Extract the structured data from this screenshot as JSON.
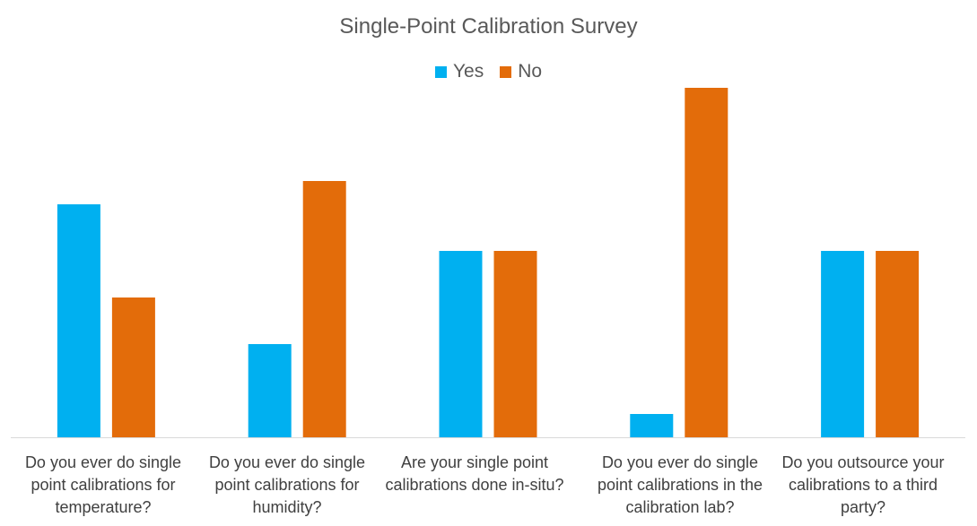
{
  "chart_data": {
    "type": "bar",
    "title": "Single-Point Calibration Survey",
    "categories": [
      "Do you ever do single point calibrations for temperature?",
      "Do you ever do single point calibrations for humidity?",
      "Are your single point calibrations done in-situ?",
      "Do you ever do single point calibrations in the calibration lab?",
      "Do you outsource your calibrations to a third party?"
    ],
    "series": [
      {
        "name": "Yes",
        "color": "#00B0F0",
        "values": [
          10,
          4,
          8,
          1,
          8
        ]
      },
      {
        "name": "No",
        "color": "#E36C0A",
        "values": [
          6,
          11,
          8,
          15,
          8
        ]
      }
    ],
    "xlabel": "",
    "ylabel": "",
    "ylim": [
      0,
      15
    ],
    "grid": false,
    "legend_position": "top"
  }
}
